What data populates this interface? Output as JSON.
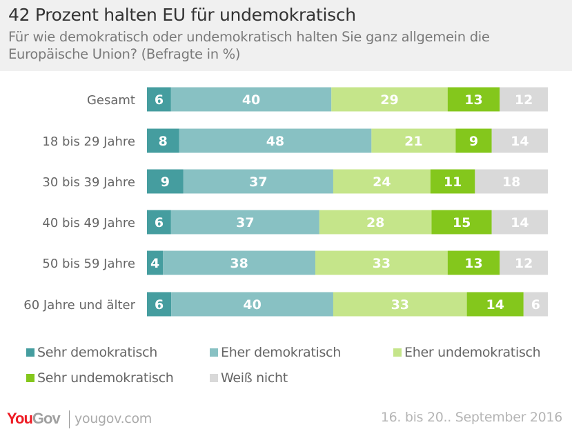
{
  "chart_data": {
    "type": "bar",
    "orientation": "horizontal",
    "stacked": true,
    "title": "42 Prozent halten EU für undemokratisch",
    "subtitle": "Für wie demokratisch oder undemokratisch halten Sie ganz allgemein die Europäische Union? (Befragte in %)",
    "categories": [
      "Gesamt",
      "18 bis 29 Jahre",
      "30 bis 39 Jahre",
      "40 bis 49 Jahre",
      "50 bis 59 Jahre",
      "60 Jahre und älter"
    ],
    "series": [
      {
        "name": "Sehr demokratisch",
        "color": "#459d9f",
        "values": [
          6,
          8,
          9,
          6,
          4,
          6
        ]
      },
      {
        "name": "Eher demokratisch",
        "color": "#88c1c3",
        "values": [
          40,
          48,
          37,
          37,
          38,
          40
        ]
      },
      {
        "name": "Eher undemokratisch",
        "color": "#c5e58a",
        "values": [
          29,
          21,
          24,
          28,
          33,
          33
        ]
      },
      {
        "name": "Sehr undemokratisch",
        "color": "#84c71c",
        "values": [
          13,
          9,
          11,
          15,
          13,
          14
        ]
      },
      {
        "name": "Weiß nicht",
        "color": "#d9d9d9",
        "values": [
          12,
          14,
          18,
          14,
          12,
          6
        ]
      }
    ],
    "grid": false,
    "legend_position": "bottom"
  },
  "footer": {
    "brand_you": "You",
    "brand_gov": "Gov",
    "site": "yougov.com",
    "date": "16. bis 20.. September 2016"
  }
}
